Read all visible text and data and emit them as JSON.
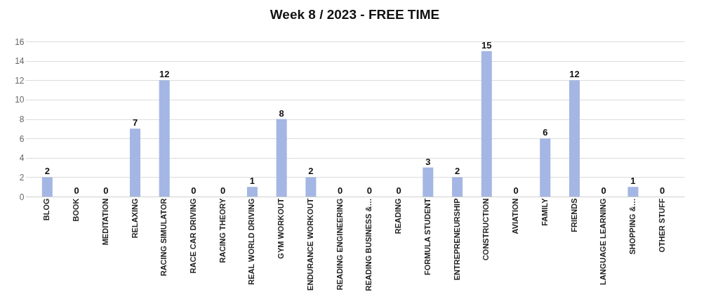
{
  "chart_data": {
    "type": "bar",
    "title": "Week 8 / 2023 - FREE TIME",
    "categories": [
      "BLOG",
      "BOOK",
      "MEDITATION",
      "RELAXING",
      "RACING SIMULATOR",
      "RACE CAR DRIVING",
      "RACING THEORY",
      "REAL WORLD DRIVING",
      "GYM WORKOUT",
      "ENDURANCE WORKOUT",
      "READING ENGINEERING",
      "READING BUSINESS &…",
      "READING",
      "FORMULA STUDENT",
      "ENTREPRENEURSHIP",
      "CONSTRUCTION",
      "AVIATION",
      "FAMILY",
      "FRIENDS",
      "LANGUAGE LEARNING",
      "SHOPPING &…",
      "OTHER STUFF"
    ],
    "values": [
      2,
      0,
      0,
      7,
      12,
      0,
      0,
      1,
      8,
      2,
      0,
      0,
      0,
      3,
      2,
      15,
      0,
      6,
      12,
      0,
      1,
      0
    ],
    "color": "#a4b6e3",
    "ylim": [
      0,
      16
    ],
    "yticks": [
      0,
      2,
      4,
      6,
      8,
      10,
      12,
      14,
      16
    ],
    "grid": "y",
    "data_labels": true
  }
}
